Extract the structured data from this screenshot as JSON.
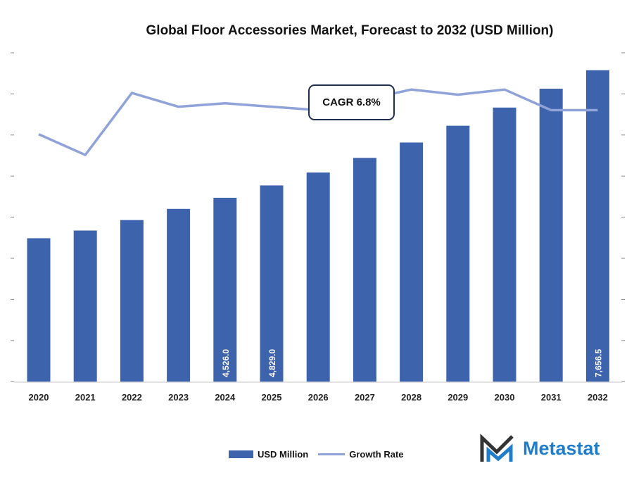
{
  "chart_data": {
    "type": "bar",
    "title": "Global Floor Accessories Market, Forecast to 2032 (USD Million)",
    "categories": [
      "2020",
      "2021",
      "2022",
      "2023",
      "2024",
      "2025",
      "2026",
      "2027",
      "2028",
      "2029",
      "2030",
      "2031",
      "2032"
    ],
    "series": [
      {
        "name": "USD Million",
        "type": "bar",
        "color": "#3d63ad",
        "values": [
          3533,
          3722,
          3979,
          4253,
          4526.0,
          4829.0,
          5145,
          5505,
          5882,
          6294,
          6740,
          7203,
          7656.5
        ],
        "data_labels": [
          null,
          null,
          null,
          null,
          "4,526.0",
          "4,829.0",
          null,
          null,
          null,
          null,
          null,
          null,
          "7,656.5"
        ]
      },
      {
        "name": "Growth Rate",
        "type": "line",
        "color": "#8fa3d8",
        "unit": "%",
        "values": [
          5.8,
          5.2,
          7.0,
          6.6,
          6.7,
          6.6,
          6.5,
          6.8,
          7.1,
          6.95,
          7.1,
          6.5,
          6.5
        ]
      }
    ],
    "annotation": "CAGR 6.8%",
    "ylim": [
      0,
      9000
    ],
    "growth_ylim": [
      0,
      9.7
    ],
    "grid": false,
    "legend": "bottom"
  },
  "brand": {
    "name": "Metastat"
  }
}
